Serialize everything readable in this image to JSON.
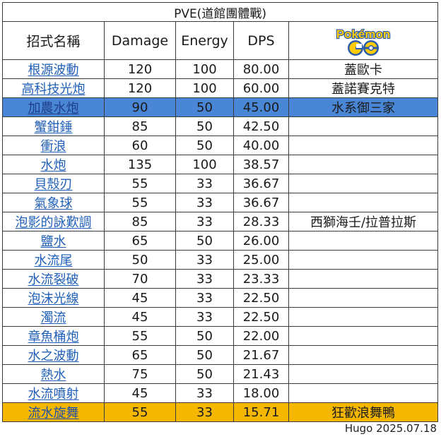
{
  "title": "PVE(道館團體戰)",
  "headers": {
    "move": "招式名稱",
    "damage": "Damage",
    "energy": "Energy",
    "dps": "DPS",
    "logo_icon": "pokemon-go-logo",
    "logo_text": "Pokémon"
  },
  "rows": [
    {
      "move": "根源波動",
      "damage": "120",
      "energy": "100",
      "dps": "80.00",
      "note": "蓋歐卡",
      "highlight": ""
    },
    {
      "move": "高科技光炮",
      "damage": "120",
      "energy": "100",
      "dps": "60.00",
      "note": "蓋諾賽克特",
      "highlight": ""
    },
    {
      "move": "加農水炮",
      "damage": "90",
      "energy": "50",
      "dps": "45.00",
      "note": "水系御三家",
      "highlight": "blue"
    },
    {
      "move": "蟹鉗錘",
      "damage": "85",
      "energy": "50",
      "dps": "42.50",
      "note": "",
      "highlight": ""
    },
    {
      "move": "衝浪",
      "damage": "60",
      "energy": "50",
      "dps": "40.00",
      "note": "",
      "highlight": ""
    },
    {
      "move": "水炮",
      "damage": "135",
      "energy": "100",
      "dps": "38.57",
      "note": "",
      "highlight": ""
    },
    {
      "move": "貝殼刃",
      "damage": "55",
      "energy": "33",
      "dps": "36.67",
      "note": "",
      "highlight": ""
    },
    {
      "move": "氣象球",
      "damage": "55",
      "energy": "33",
      "dps": "36.67",
      "note": "",
      "highlight": ""
    },
    {
      "move": "泡影的詠歎調",
      "damage": "85",
      "energy": "33",
      "dps": "28.33",
      "note": "西獅海壬/拉普拉斯",
      "highlight": ""
    },
    {
      "move": "鹽水",
      "damage": "65",
      "energy": "50",
      "dps": "26.00",
      "note": "",
      "highlight": ""
    },
    {
      "move": "水流尾",
      "damage": "50",
      "energy": "33",
      "dps": "25.00",
      "note": "",
      "highlight": ""
    },
    {
      "move": "水流裂破",
      "damage": "70",
      "energy": "33",
      "dps": "23.33",
      "note": "",
      "highlight": ""
    },
    {
      "move": "泡沫光線",
      "damage": "45",
      "energy": "33",
      "dps": "22.50",
      "note": "",
      "highlight": ""
    },
    {
      "move": "濁流",
      "damage": "45",
      "energy": "33",
      "dps": "22.50",
      "note": "",
      "highlight": ""
    },
    {
      "move": "章魚桶炮",
      "damage": "55",
      "energy": "50",
      "dps": "22.00",
      "note": "",
      "highlight": ""
    },
    {
      "move": "水之波動",
      "damage": "65",
      "energy": "50",
      "dps": "21.67",
      "note": "",
      "highlight": ""
    },
    {
      "move": "熱水",
      "damage": "75",
      "energy": "50",
      "dps": "21.43",
      "note": "",
      "highlight": ""
    },
    {
      "move": "水流噴射",
      "damage": "45",
      "energy": "33",
      "dps": "18.00",
      "note": "",
      "highlight": ""
    },
    {
      "move": "流水旋舞",
      "damage": "55",
      "energy": "33",
      "dps": "15.71",
      "note": "狂歡浪舞鴨",
      "highlight": "orange"
    }
  ],
  "credit": "Hugo 2025.07.18"
}
